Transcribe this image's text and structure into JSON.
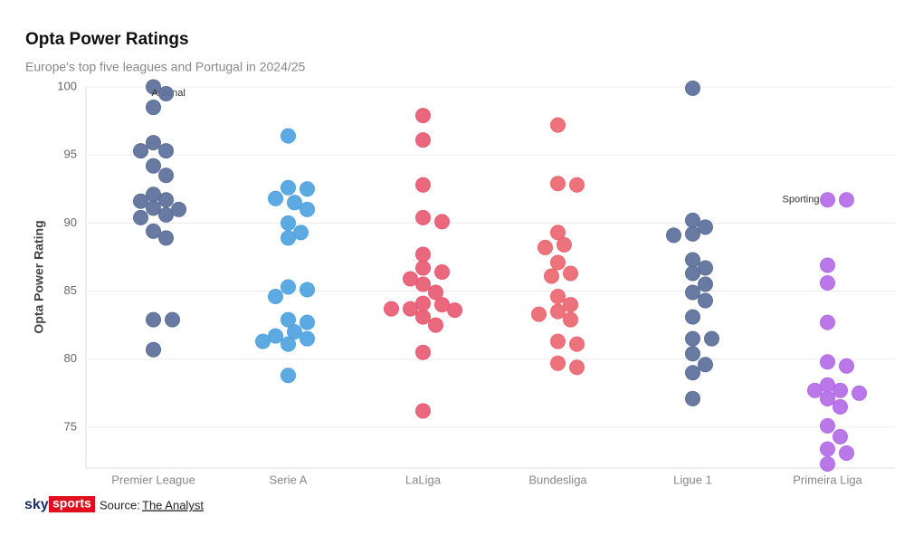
{
  "chart_data": {
    "type": "strip",
    "title": "Opta Power Ratings",
    "subtitle": "Europe's top five leagues and Portugal in 2024/25",
    "y_label": "Opta Power Rating",
    "ylim": [
      72,
      100
    ],
    "yticks": [
      75,
      80,
      85,
      90,
      95,
      100
    ],
    "grid": true,
    "categories": [
      "Premier League",
      "Serie A",
      "LaLiga",
      "Bundesliga",
      "Ligue 1",
      "Primeira Liga"
    ],
    "series": [
      {
        "name": "Premier League",
        "color": "#5b6f99",
        "annotation": "Arsenal",
        "values": [
          100,
          99.5,
          98.5,
          95.9,
          95.3,
          95.3,
          94.2,
          93.5,
          92.1,
          91.7,
          91.6,
          91.1,
          91.0,
          90.6,
          90.4,
          89.4,
          88.9,
          82.9,
          82.9,
          80.7
        ]
      },
      {
        "name": "Serie A",
        "color": "#4fa3df",
        "values": [
          96.4,
          92.6,
          92.5,
          91.8,
          91.5,
          91.0,
          90.0,
          89.3,
          88.9,
          85.3,
          85.1,
          84.6,
          82.9,
          82.7,
          82.0,
          81.7,
          81.5,
          81.3,
          81.1,
          78.8
        ]
      },
      {
        "name": "LaLiga",
        "color": "#e85b72",
        "values": [
          97.9,
          96.1,
          92.8,
          90.4,
          90.1,
          87.7,
          86.7,
          86.4,
          85.9,
          85.5,
          84.9,
          84.1,
          84.0,
          83.7,
          83.7,
          83.6,
          83.1,
          82.5,
          80.5,
          76.2
        ]
      },
      {
        "name": "Bundesliga",
        "color": "#ea6670",
        "values": [
          97.2,
          92.9,
          92.8,
          89.3,
          88.4,
          88.2,
          87.1,
          86.3,
          86.1,
          84.6,
          84.0,
          83.5,
          83.3,
          82.9,
          81.3,
          81.1,
          79.7,
          79.4
        ]
      },
      {
        "name": "Ligue 1",
        "color": "#5b6f99",
        "values": [
          99.9,
          90.2,
          89.7,
          89.2,
          89.1,
          87.3,
          86.7,
          86.3,
          85.5,
          84.9,
          84.3,
          83.1,
          81.5,
          81.5,
          80.4,
          79.6,
          79.0,
          77.1
        ]
      },
      {
        "name": "Primeira Liga",
        "color": "#b36be6",
        "annotation": "Sporting",
        "values": [
          91.7,
          91.7,
          86.9,
          85.6,
          82.7,
          79.8,
          79.5,
          78.1,
          77.7,
          77.7,
          77.5,
          77.1,
          76.5,
          75.1,
          74.3,
          73.4,
          73.1,
          72.3
        ]
      }
    ],
    "logo": {
      "sky": "sky",
      "sports": "sports"
    },
    "source": {
      "prefix": "Source:",
      "link": "The Analyst"
    }
  }
}
